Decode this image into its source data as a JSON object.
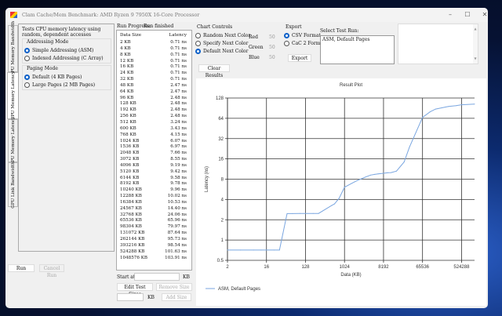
{
  "window": {
    "title": "Clam Cache/Mem Benchmark: AMD Ryzen 9 7950X 16-Core Processor",
    "minimize": "–",
    "maximize": "☐",
    "close": "✕"
  },
  "tabs": [
    {
      "label": "CPU Memory Bandwidth"
    },
    {
      "label": "CPU Memory Latency",
      "selected": true
    },
    {
      "label": "GPU Memory Latency"
    },
    {
      "label": "GPU Link Bandwidth"
    }
  ],
  "description": "Tests CPU memory latency using random, dependent accesses",
  "addressing": {
    "title": "Addressing Mode",
    "options": [
      "Simple Addressing (ASM)",
      "Indexed Addressing (C Array)"
    ],
    "selected": 0
  },
  "paging": {
    "title": "Paging Mode",
    "options": [
      "Default (4 KB Pages)",
      "Large Pages (2 MB Pages)"
    ],
    "selected": 0
  },
  "run_label": "Run",
  "cancel_label": "Cancel Run",
  "progress": {
    "label": "Run Progress:",
    "status": "Run finished"
  },
  "table": {
    "headers": [
      "Data Size",
      "Latency"
    ],
    "rows": [
      [
        "2 KB",
        "0.71 ns"
      ],
      [
        "4 KB",
        "0.71 ns"
      ],
      [
        "8 KB",
        "0.71 ns"
      ],
      [
        "12 KB",
        "0.71 ns"
      ],
      [
        "16 KB",
        "0.71 ns"
      ],
      [
        "24 KB",
        "0.71 ns"
      ],
      [
        "32 KB",
        "0.71 ns"
      ],
      [
        "48 KB",
        "2.47 ns"
      ],
      [
        "64 KB",
        "2.47 ns"
      ],
      [
        "96 KB",
        "2.48 ns"
      ],
      [
        "128 KB",
        "2.48 ns"
      ],
      [
        "192 KB",
        "2.48 ns"
      ],
      [
        "256 KB",
        "2.48 ns"
      ],
      [
        "512 KB",
        "3.24 ns"
      ],
      [
        "600 KB",
        "3.43 ns"
      ],
      [
        "768 KB",
        "4.15 ns"
      ],
      [
        "1024 KB",
        "6.07 ns"
      ],
      [
        "1536 KB",
        "6.97 ns"
      ],
      [
        "2048 KB",
        "7.66 ns"
      ],
      [
        "3072 KB",
        "8.55 ns"
      ],
      [
        "4096 KB",
        "9.19 ns"
      ],
      [
        "5120 KB",
        "9.42 ns"
      ],
      [
        "6144 KB",
        "9.58 ns"
      ],
      [
        "8192 KB",
        "9.78 ns"
      ],
      [
        "10240 KB",
        "9.96 ns"
      ],
      [
        "12288 KB",
        "10.02 ns"
      ],
      [
        "16384 KB",
        "10.53 ns"
      ],
      [
        "24567 KB",
        "14.40 ns"
      ],
      [
        "32768 KB",
        "24.06 ns"
      ],
      [
        "65536 KB",
        "65.96 ns"
      ],
      [
        "98304 KB",
        "79.97 ns"
      ],
      [
        "131072 KB",
        "87.64 ns"
      ],
      [
        "262144 KB",
        "95.73 ns"
      ],
      [
        "393216 KB",
        "98.54 ns"
      ],
      [
        "524288 KB",
        "101.63 ns"
      ],
      [
        "1048576 KB",
        "103.91 ns"
      ]
    ]
  },
  "start_at": {
    "label": "Start at",
    "value": "",
    "unit": "KB"
  },
  "edit_sizes_label": "Edit Test Sizes",
  "remove_size_label": "Remove Size",
  "add_size": {
    "value": "",
    "unit": "KB",
    "label": "Add Size"
  },
  "chart_controls": {
    "title": "Chart Controls",
    "options": [
      "Random Next Color",
      "Specify Next Color",
      "Default Next Color"
    ],
    "selected": 2,
    "rgb": [
      {
        "label": "Red",
        "value": "50"
      },
      {
        "label": "Green",
        "value": "50"
      },
      {
        "label": "Blue",
        "value": "50"
      }
    ],
    "clear_label": "Clear Results"
  },
  "export": {
    "title": "Export",
    "options": [
      "CSV Format",
      "CaC 2 Format"
    ],
    "selected": 0,
    "button": "Export",
    "select_label": "Select Test Run:",
    "runs": [
      "ASM, Default Pages"
    ]
  },
  "chart_data": {
    "type": "line",
    "title": "Result Plot",
    "xlabel": "Data (KB)",
    "ylabel": "Latency (ns)",
    "xscale": "log2",
    "yscale": "log2",
    "xlim": [
      2,
      1048576
    ],
    "ylim": [
      0.5,
      128
    ],
    "xticks": [
      "2",
      "16",
      "128",
      "1024",
      "8192",
      "65536",
      "524288"
    ],
    "yticks": [
      "0.5",
      "1",
      "2",
      "4",
      "8",
      "16",
      "32",
      "64",
      "128"
    ],
    "grid": true,
    "legend": "bottom-left",
    "series": [
      {
        "name": "ASM, Default Pages",
        "color": "#7aa6e0",
        "x": [
          2,
          4,
          8,
          12,
          16,
          24,
          32,
          48,
          64,
          96,
          128,
          192,
          256,
          512,
          600,
          768,
          1024,
          1536,
          2048,
          3072,
          4096,
          5120,
          6144,
          8192,
          10240,
          12288,
          16384,
          24567,
          32768,
          65536,
          98304,
          131072,
          262144,
          393216,
          524288,
          1048576
        ],
        "y": [
          0.71,
          0.71,
          0.71,
          0.71,
          0.71,
          0.71,
          0.71,
          2.47,
          2.47,
          2.48,
          2.48,
          2.48,
          2.48,
          3.24,
          3.43,
          4.15,
          6.07,
          6.97,
          7.66,
          8.55,
          9.19,
          9.42,
          9.58,
          9.78,
          9.96,
          10.02,
          10.53,
          14.4,
          24.06,
          65.96,
          79.97,
          87.64,
          95.73,
          98.54,
          101.63,
          103.91
        ]
      }
    ]
  }
}
